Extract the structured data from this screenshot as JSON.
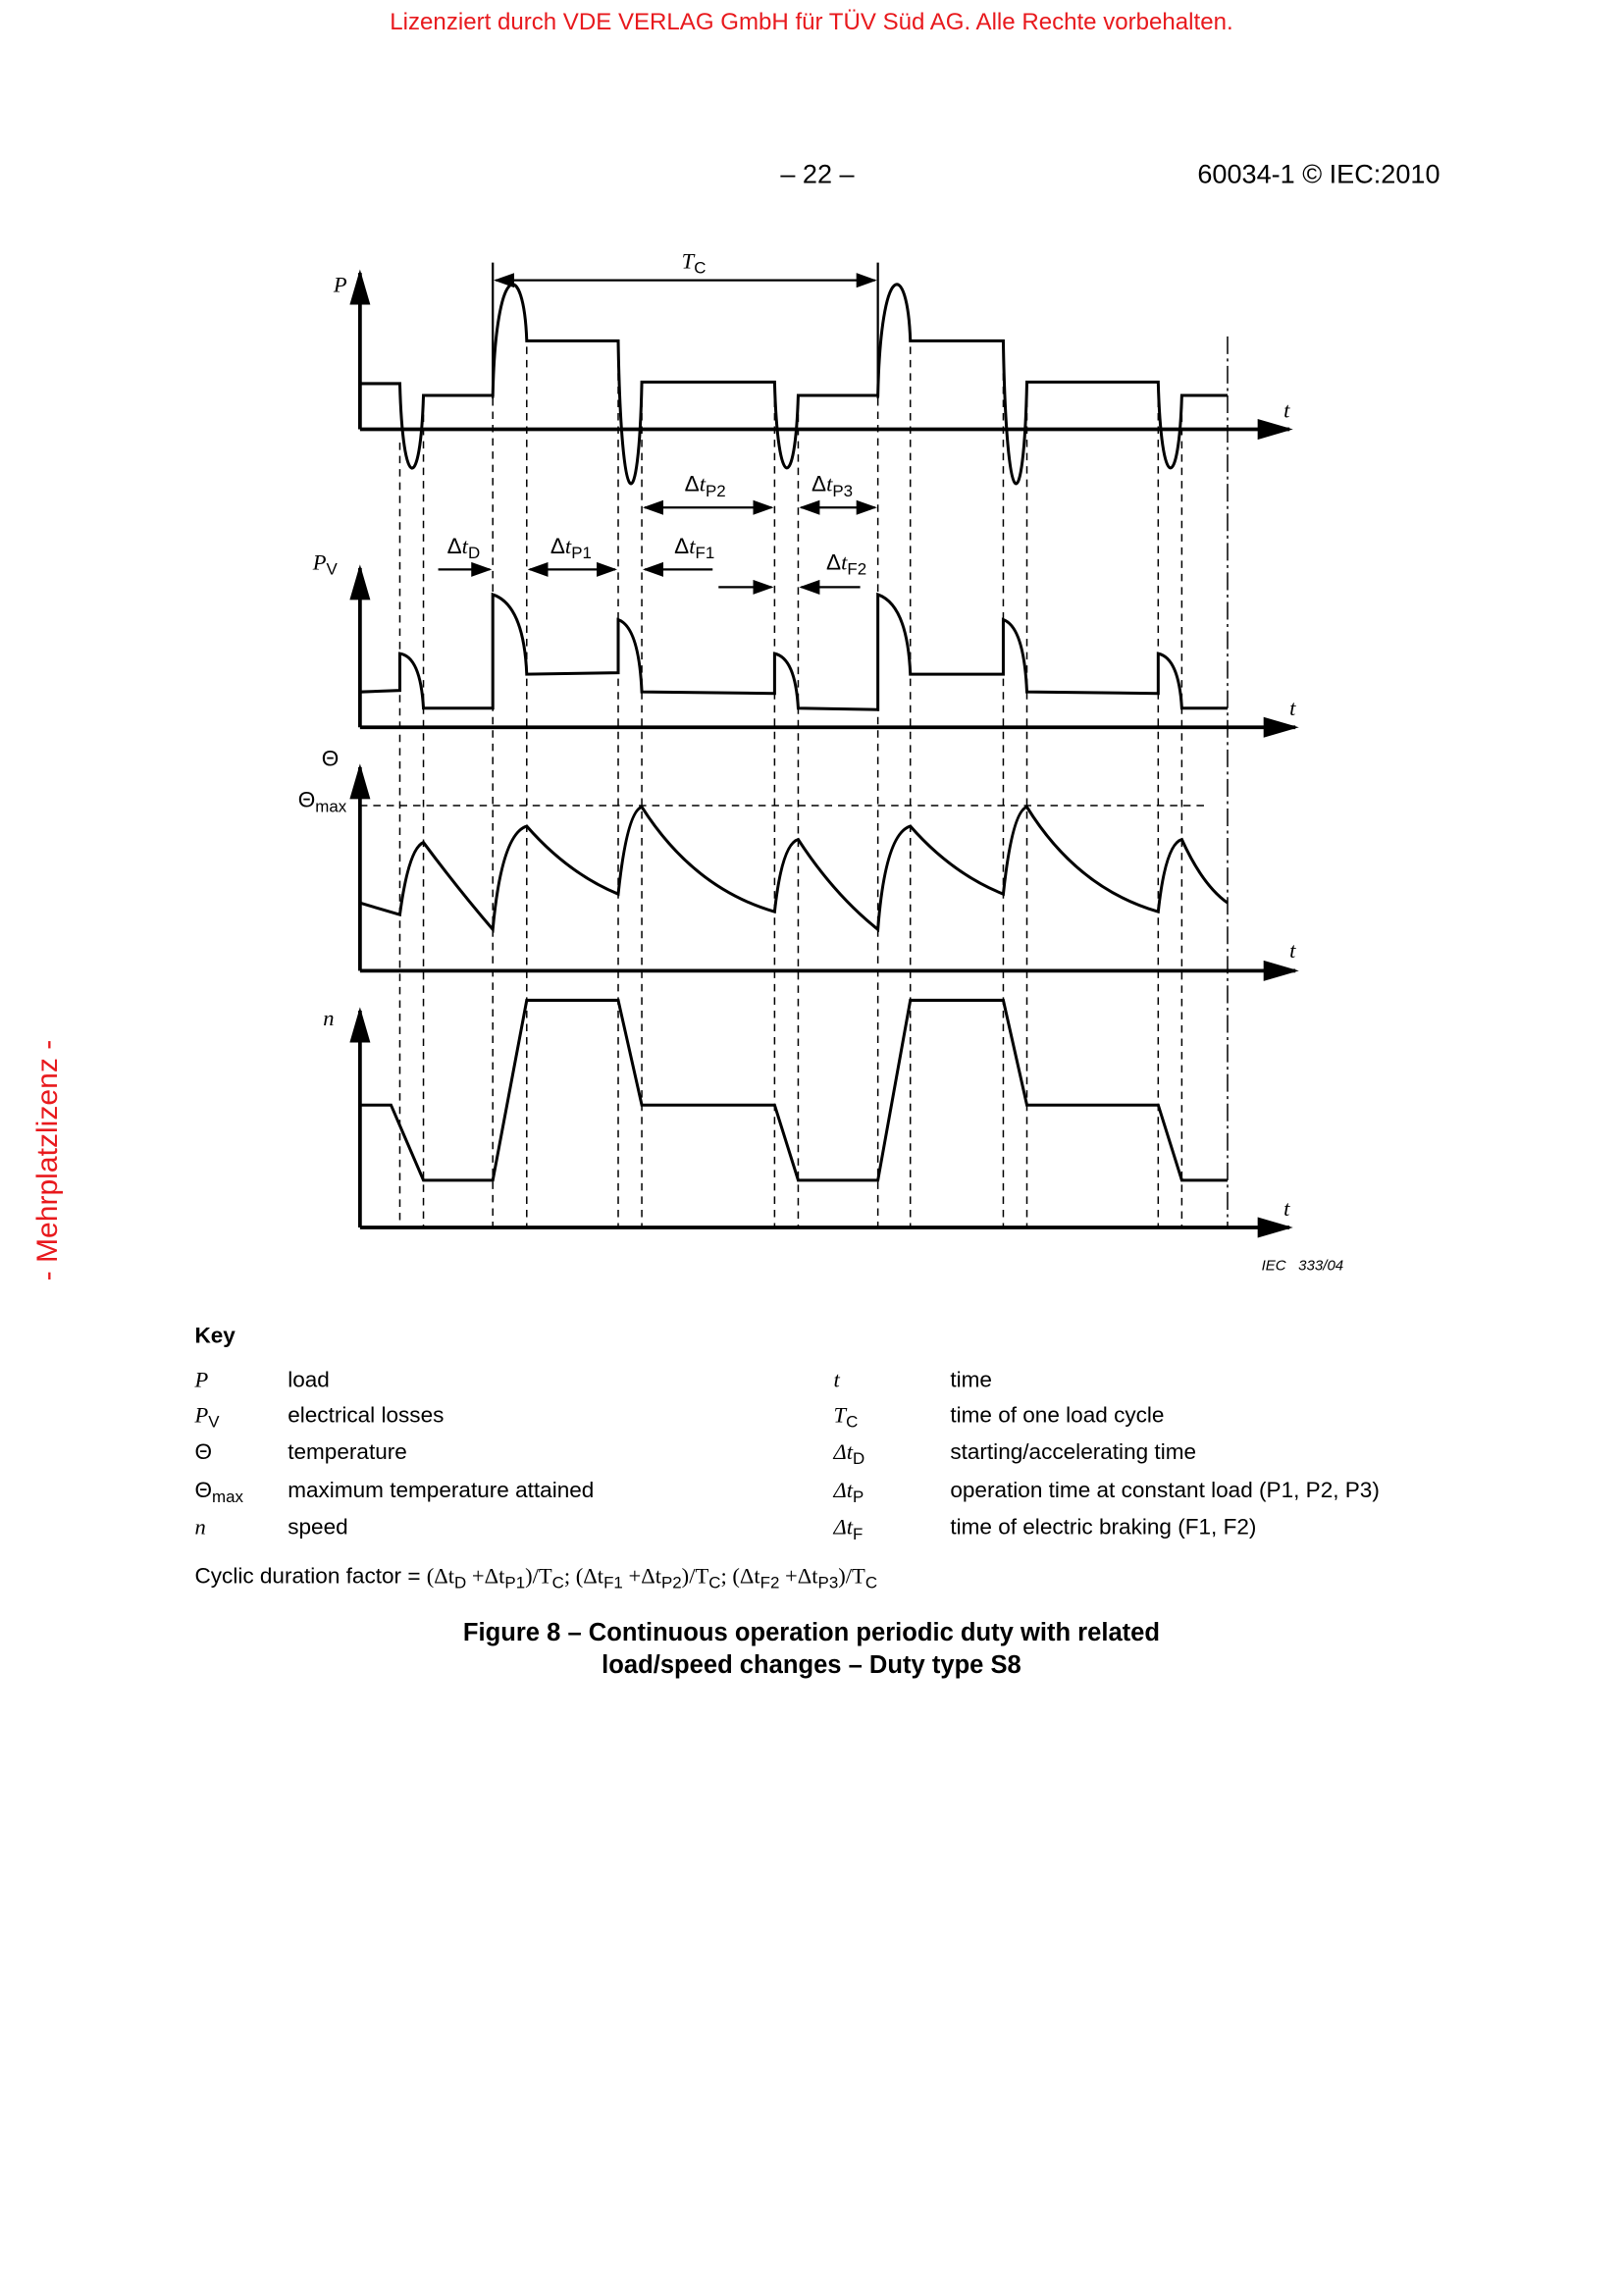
{
  "watermark_top": "Lizenziert durch VDE VERLAG GmbH  für TÜV Süd AG. Alle Rechte vorbehalten.",
  "watermark_side": "- Mehrplatzlizenz -",
  "header": {
    "page_number": "– 22 –",
    "document_id": "60034-1 © IEC:2010"
  },
  "figure": {
    "axes": {
      "P": "P",
      "PV_main": "P",
      "PV_sub": "V",
      "theta": "Θ",
      "theta_max_main": "Θ",
      "theta_max_sub": "max",
      "n": "n",
      "t": "t"
    },
    "intervals": {
      "delta": "Δ",
      "t": "t",
      "TC_main": "T",
      "TC_sub": "C",
      "D": "D",
      "P1": "P1",
      "P2": "P2",
      "P3": "P3",
      "F1": "F1",
      "F2": "F2"
    },
    "figure_id": "IEC   333/04"
  },
  "key": {
    "title": "Key",
    "left": [
      {
        "sym": "P",
        "sub": "",
        "desc": "load"
      },
      {
        "sym": "P",
        "sub": "V",
        "desc": "electrical losses"
      },
      {
        "sym": "Θ",
        "sub": "",
        "desc": "temperature"
      },
      {
        "sym": "Θ",
        "sub": "max",
        "desc": "maximum temperature attained"
      },
      {
        "sym": "n",
        "sub": "",
        "desc": "speed"
      }
    ],
    "right": [
      {
        "sym": "t",
        "sub": "",
        "desc": "time"
      },
      {
        "sym": "T",
        "sub": "C",
        "desc": "time of one load cycle"
      },
      {
        "sym": "Δt",
        "sub": "D",
        "desc": "starting/accelerating time"
      },
      {
        "sym": "Δt",
        "sub": "P",
        "desc": "operation time at constant load (P1, P2, P3)"
      },
      {
        "sym": "Δt",
        "sub": "F",
        "desc": "time of electric braking (F1, F2)"
      }
    ]
  },
  "formula": {
    "label": "Cyclic duration factor = ",
    "expr": [
      "(Δt",
      "D",
      " +Δt",
      "P1",
      ")/T",
      "C",
      "; (Δt",
      "F1",
      " +Δt",
      "P2",
      ")/T",
      "C",
      "; (Δt",
      "F2",
      " +Δt",
      "P3",
      ")/T",
      "C"
    ]
  },
  "caption": {
    "line1": "Figure 8 – Continuous operation periodic duty with related",
    "line2": "load/speed changes – Duty type S8"
  }
}
